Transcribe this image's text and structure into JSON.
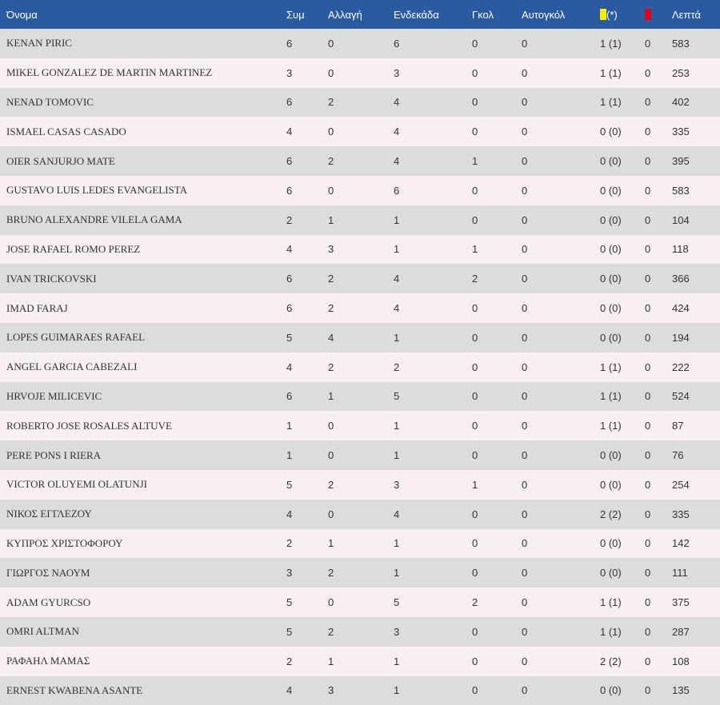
{
  "header": {
    "name": "Όνομα",
    "apps": "Συμ",
    "subs": "Αλλαγή",
    "starts": "Ενδεκάδα",
    "goals": "Γκολ",
    "own_goals": "Αυτογκόλ",
    "yellow_suffix": "(*)",
    "minutes": "Λεπτά",
    "yellow_color": "#ffee00",
    "red_color": "#e0001a"
  },
  "players": [
    {
      "name": "KENAN PIRIC",
      "apps": "6",
      "subs": "0",
      "starts": "6",
      "goals": "0",
      "own_goals": "0",
      "yellow": "1 (1)",
      "red": "0",
      "minutes": "583"
    },
    {
      "name": "MIKEL GONZALEZ DE MARTIN MARTINEZ",
      "apps": "3",
      "subs": "0",
      "starts": "3",
      "goals": "0",
      "own_goals": "0",
      "yellow": "1 (1)",
      "red": "0",
      "minutes": "253"
    },
    {
      "name": "NENAD TOMOVIC",
      "apps": "6",
      "subs": "2",
      "starts": "4",
      "goals": "0",
      "own_goals": "0",
      "yellow": "1 (1)",
      "red": "0",
      "minutes": "402"
    },
    {
      "name": "ISMAEL CASAS CASADO",
      "apps": "4",
      "subs": "0",
      "starts": "4",
      "goals": "0",
      "own_goals": "0",
      "yellow": "0 (0)",
      "red": "0",
      "minutes": "335"
    },
    {
      "name": "OIER SANJURJO MATE",
      "apps": "6",
      "subs": "2",
      "starts": "4",
      "goals": "1",
      "own_goals": "0",
      "yellow": "0 (0)",
      "red": "0",
      "minutes": "395"
    },
    {
      "name": "GUSTAVO LUIS LEDES EVANGELISTA",
      "apps": "6",
      "subs": "0",
      "starts": "6",
      "goals": "0",
      "own_goals": "0",
      "yellow": "0 (0)",
      "red": "0",
      "minutes": "583"
    },
    {
      "name": "BRUNO ALEXANDRE VILELA GAMA",
      "apps": "2",
      "subs": "1",
      "starts": "1",
      "goals": "0",
      "own_goals": "0",
      "yellow": "0 (0)",
      "red": "0",
      "minutes": "104"
    },
    {
      "name": "JOSE RAFAEL ROMO PEREZ",
      "apps": "4",
      "subs": "3",
      "starts": "1",
      "goals": "1",
      "own_goals": "0",
      "yellow": "0 (0)",
      "red": "0",
      "minutes": "118"
    },
    {
      "name": "IVAN TRICKOVSKI",
      "apps": "6",
      "subs": "2",
      "starts": "4",
      "goals": "2",
      "own_goals": "0",
      "yellow": "0 (0)",
      "red": "0",
      "minutes": "366"
    },
    {
      "name": "IMAD FARAJ",
      "apps": "6",
      "subs": "2",
      "starts": "4",
      "goals": "0",
      "own_goals": "0",
      "yellow": "0 (0)",
      "red": "0",
      "minutes": "424"
    },
    {
      "name": "LOPES GUIMARAES RAFAEL",
      "apps": "5",
      "subs": "4",
      "starts": "1",
      "goals": "0",
      "own_goals": "0",
      "yellow": "0 (0)",
      "red": "0",
      "minutes": "194"
    },
    {
      "name": "ANGEL GARCIA CABEZALI",
      "apps": "4",
      "subs": "2",
      "starts": "2",
      "goals": "0",
      "own_goals": "0",
      "yellow": "1 (1)",
      "red": "0",
      "minutes": "222"
    },
    {
      "name": "HRVOJE MILICEVIC",
      "apps": "6",
      "subs": "1",
      "starts": "5",
      "goals": "0",
      "own_goals": "0",
      "yellow": "1 (1)",
      "red": "0",
      "minutes": "524"
    },
    {
      "name": "ROBERTO JOSE ROSALES ALTUVE",
      "apps": "1",
      "subs": "0",
      "starts": "1",
      "goals": "0",
      "own_goals": "0",
      "yellow": "1 (1)",
      "red": "0",
      "minutes": "87"
    },
    {
      "name": "PERE PONS I RIERA",
      "apps": "1",
      "subs": "0",
      "starts": "1",
      "goals": "0",
      "own_goals": "0",
      "yellow": "0 (0)",
      "red": "0",
      "minutes": "76"
    },
    {
      "name": "VICTOR OLUYEMI OLATUNJI",
      "apps": "5",
      "subs": "2",
      "starts": "3",
      "goals": "1",
      "own_goals": "0",
      "yellow": "0 (0)",
      "red": "0",
      "minutes": "254"
    },
    {
      "name": "ΝΙΚΟΣ ΕΓΓΛΕΖΟΥ",
      "apps": "4",
      "subs": "0",
      "starts": "4",
      "goals": "0",
      "own_goals": "0",
      "yellow": "2 (2)",
      "red": "0",
      "minutes": "335"
    },
    {
      "name": "ΚΥΠΡΟΣ ΧΡΙΣΤΟΦΟΡΟΥ",
      "apps": "2",
      "subs": "1",
      "starts": "1",
      "goals": "0",
      "own_goals": "0",
      "yellow": "0 (0)",
      "red": "0",
      "minutes": "142"
    },
    {
      "name": "ΓΙΩΡΓΟΣ ΝΑΟΥΜ",
      "apps": "3",
      "subs": "2",
      "starts": "1",
      "goals": "0",
      "own_goals": "0",
      "yellow": "0 (0)",
      "red": "0",
      "minutes": "111"
    },
    {
      "name": "ADAM GYURCSO",
      "apps": "5",
      "subs": "0",
      "starts": "5",
      "goals": "2",
      "own_goals": "0",
      "yellow": "1 (1)",
      "red": "0",
      "minutes": "375"
    },
    {
      "name": "OMRI ALTMAN",
      "apps": "5",
      "subs": "2",
      "starts": "3",
      "goals": "0",
      "own_goals": "0",
      "yellow": "1 (1)",
      "red": "0",
      "minutes": "287"
    },
    {
      "name": "ΡΑΦΑΗΛ ΜΑΜΑΣ",
      "apps": "2",
      "subs": "1",
      "starts": "1",
      "goals": "0",
      "own_goals": "0",
      "yellow": "2 (2)",
      "red": "0",
      "minutes": "108"
    },
    {
      "name": "ERNEST KWABENA ASANTE",
      "apps": "4",
      "subs": "3",
      "starts": "1",
      "goals": "0",
      "own_goals": "0",
      "yellow": "0 (0)",
      "red": "0",
      "minutes": "135"
    }
  ]
}
